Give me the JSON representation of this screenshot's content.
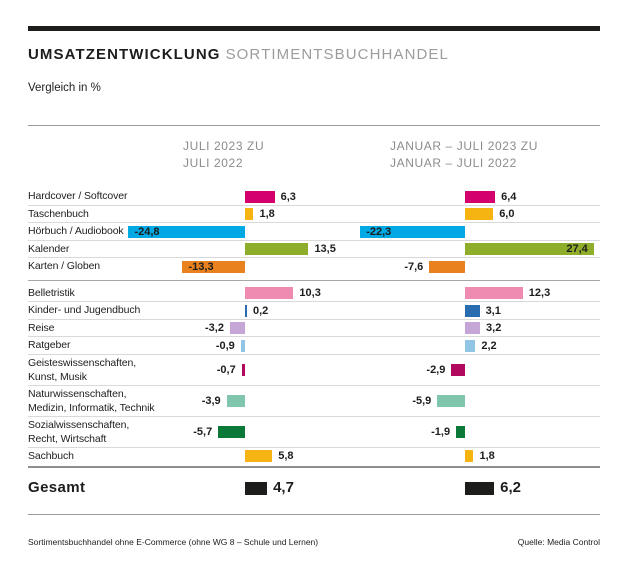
{
  "header": {
    "title_bold": "UMSATZENTWICKLUNG",
    "title_light": "SORTIMENTSBUCHHANDEL",
    "subtitle": "Vergleich in %"
  },
  "chart_data": {
    "type": "bar",
    "orientation": "horizontal",
    "unit": "%",
    "title": "UMSATZENTWICKLUNG SORTIMENTSBUCHHANDEL",
    "subtitle": "Vergleich in %",
    "value_range": [
      -24.8,
      27.4
    ],
    "columns": [
      {
        "line1": "JULI 2023 ZU",
        "line2": "JULI 2022"
      },
      {
        "line1": "JANUAR – JULI 2023 ZU",
        "line2": "JANUAR – JULI 2022"
      }
    ],
    "groups": [
      {
        "rows": [
          {
            "label": [
              "Hardcover / Softcover"
            ],
            "values": [
              6.3,
              6.4
            ],
            "color": "#d4006e",
            "inside": [
              false,
              false
            ]
          },
          {
            "label": [
              "Taschenbuch"
            ],
            "values": [
              1.8,
              6.0
            ],
            "color": "#f5b412",
            "inside": [
              false,
              false
            ]
          },
          {
            "label": [
              "Hörbuch / Audiobook"
            ],
            "values": [
              -24.8,
              -22.3
            ],
            "color": "#00a8e4",
            "inside": [
              true,
              true
            ]
          },
          {
            "label": [
              "Kalender"
            ],
            "values": [
              13.5,
              27.4
            ],
            "color": "#8ead2b",
            "inside": [
              false,
              true
            ]
          },
          {
            "label": [
              "Karten / Globen"
            ],
            "values": [
              -13.3,
              -7.6
            ],
            "color": "#e9821e",
            "inside": [
              true,
              false
            ]
          }
        ]
      },
      {
        "rows": [
          {
            "label": [
              "Belletristik"
            ],
            "values": [
              10.3,
              12.3
            ],
            "color": "#ef8ab0",
            "inside": [
              false,
              false
            ]
          },
          {
            "label": [
              "Kinder- und Jugendbuch"
            ],
            "values": [
              0.2,
              3.1
            ],
            "color": "#2a6cb0",
            "inside": [
              false,
              false
            ]
          },
          {
            "label": [
              "Reise"
            ],
            "values": [
              -3.2,
              3.2
            ],
            "color": "#c5a6d6",
            "inside": [
              false,
              false
            ]
          },
          {
            "label": [
              "Ratgeber"
            ],
            "values": [
              -0.9,
              2.2
            ],
            "color": "#90c5e6",
            "inside": [
              false,
              false
            ]
          },
          {
            "label": [
              "Geisteswissenschaften,",
              "Kunst, Musik"
            ],
            "values": [
              -0.7,
              -2.9
            ],
            "color": "#b0095e",
            "inside": [
              false,
              false
            ]
          },
          {
            "label": [
              "Naturwissenschaften,",
              "Medizin, Informatik, Technik"
            ],
            "values": [
              -3.9,
              -5.9
            ],
            "color": "#7fc6ad",
            "inside": [
              false,
              false
            ]
          },
          {
            "label": [
              "Sozialwissenschaften,",
              "Recht, Wirtschaft"
            ],
            "values": [
              -5.7,
              -1.9
            ],
            "color": "#0a7836",
            "inside": [
              false,
              false
            ]
          },
          {
            "label": [
              "Sachbuch"
            ],
            "values": [
              5.8,
              1.8
            ],
            "color": "#f5b412",
            "inside": [
              false,
              false
            ]
          }
        ]
      }
    ],
    "total": {
      "label": "Gesamt",
      "values": [
        4.7,
        6.2
      ],
      "color": "#1d1d1b",
      "inside": [
        false,
        false
      ]
    }
  },
  "footer": {
    "left": "Sortimentsbuchhandel ohne E-Commerce (ohne WG 8 – Schule und Lernen)",
    "right": "Quelle: Media Control"
  }
}
